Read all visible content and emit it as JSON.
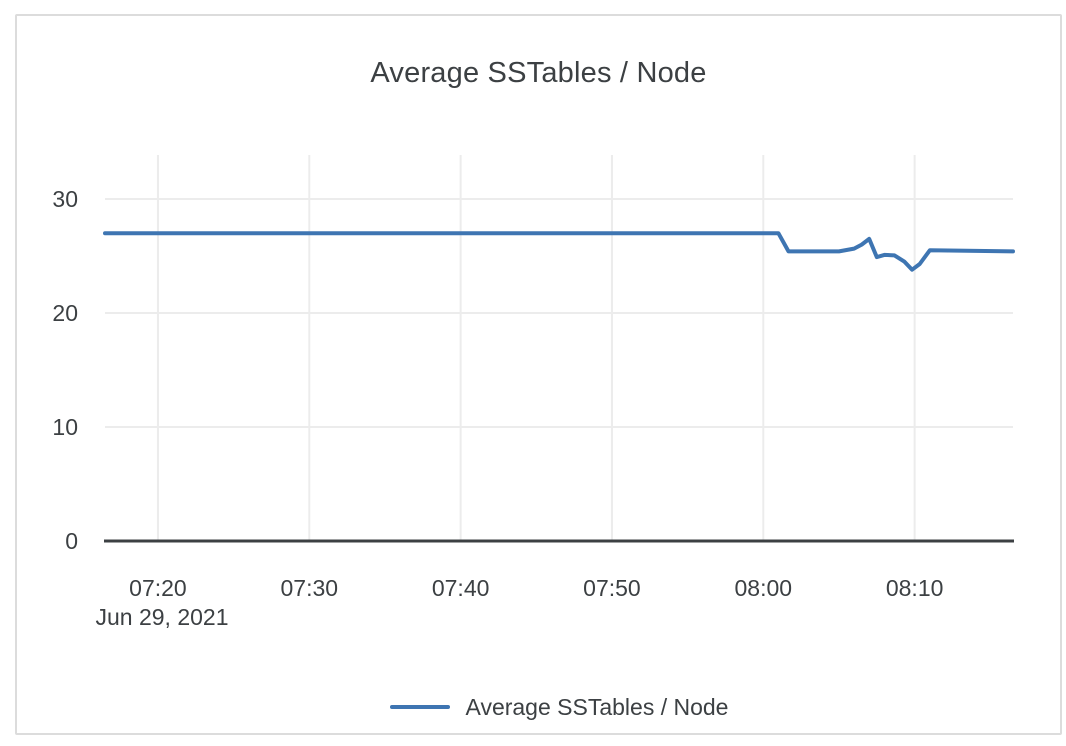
{
  "chart_data": {
    "type": "line",
    "title": "Average SSTables / Node",
    "x_axis": {
      "tick_labels": [
        "07:20",
        "07:30",
        "07:40",
        "07:50",
        "08:00",
        "08:10"
      ],
      "date_label": "Jun 29, 2021",
      "range": [
        "07:16:30",
        "08:16:30"
      ]
    },
    "y_axis": {
      "tick_labels": [
        "0",
        "10",
        "20",
        "30"
      ],
      "tick_values": [
        0,
        10,
        20,
        30
      ],
      "max_value": 30
    },
    "grid": true,
    "legend": {
      "position": "bottom",
      "label": "Average SSTables / Node"
    },
    "series": [
      {
        "name": "Average SSTables / Node",
        "color": "#3E75B2",
        "points": [
          [
            "07:16:30",
            27
          ],
          [
            "08:01:00",
            27
          ],
          [
            "08:01:40",
            25.4
          ],
          [
            "08:05:00",
            25.4
          ],
          [
            "08:06:00",
            25.65
          ],
          [
            "08:06:30",
            26.0
          ],
          [
            "08:07:00",
            26.5
          ],
          [
            "08:07:30",
            24.9
          ],
          [
            "08:08:00",
            25.1
          ],
          [
            "08:08:40",
            25.05
          ],
          [
            "08:09:20",
            24.5
          ],
          [
            "08:09:50",
            23.8
          ],
          [
            "08:10:20",
            24.3
          ],
          [
            "08:11:00",
            25.5
          ],
          [
            "08:16:30",
            25.4
          ]
        ]
      }
    ]
  },
  "colors": {
    "line": "#3E75B2",
    "grid": "#ececec",
    "axis": "#3c4043",
    "text": "#3c4043",
    "panel_border": "#dcdcdc"
  }
}
